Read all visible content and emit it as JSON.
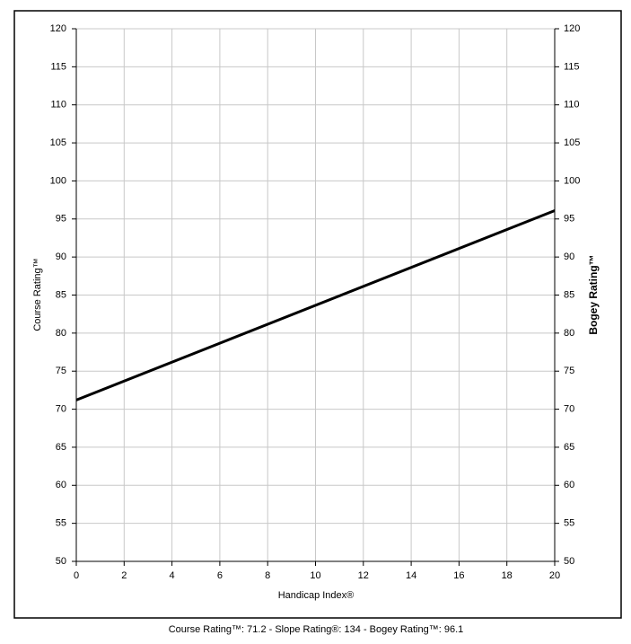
{
  "chart_data": {
    "type": "line",
    "x_label": "Handicap Index®",
    "y_label": "Course Rating™",
    "y2_label": "Bogey Rating™",
    "footer": "Course Rating™: 71.2 - Slope Rating®: 134 - Bogey Rating™: 96.1",
    "x": [
      0,
      20
    ],
    "series": [
      {
        "color": "#000000",
        "values": [
          71.2,
          96.1
        ]
      }
    ],
    "xlim": [
      0,
      20
    ],
    "xticks": [
      0,
      2,
      4,
      6,
      8,
      10,
      12,
      14,
      16,
      18,
      20
    ],
    "ylim": [
      50,
      120
    ],
    "yticks": [
      50,
      55,
      60,
      65,
      70,
      75,
      80,
      85,
      90,
      95,
      100,
      105,
      110,
      115,
      120
    ],
    "y2lim": [
      50,
      120
    ],
    "y2ticks": [
      50,
      55,
      60,
      65,
      70,
      75,
      80,
      85,
      90,
      95,
      100,
      105,
      110,
      115,
      120
    ],
    "grid": true
  }
}
